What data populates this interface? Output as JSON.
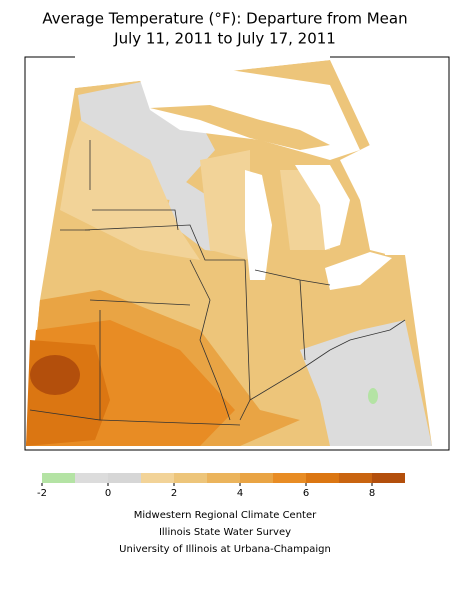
{
  "title": [
    "Average Temperature (°F): Departure from Mean",
    "July 11, 2011 to July 17, 2011"
  ],
  "legend": {
    "lim": [
      -2,
      9
    ],
    "bins": [
      -2,
      -1,
      0,
      1,
      2,
      3,
      4,
      5,
      6,
      7,
      8,
      9
    ],
    "colors": [
      "#b4e3a4",
      "#dcdcdc",
      "#d6d6d6",
      "#f2d398",
      "#edc57a",
      "#ebb45c",
      "#e9a444",
      "#e88c24",
      "#db7612",
      "#c96410",
      "#b34f0c"
    ],
    "ticks": [
      -2,
      0,
      2,
      4,
      6,
      8
    ]
  },
  "credits": [
    "Midwestern Regional Climate Center",
    "Illinois State Water Survey",
    "University of Illinois at Urbana-Champaign"
  ]
}
